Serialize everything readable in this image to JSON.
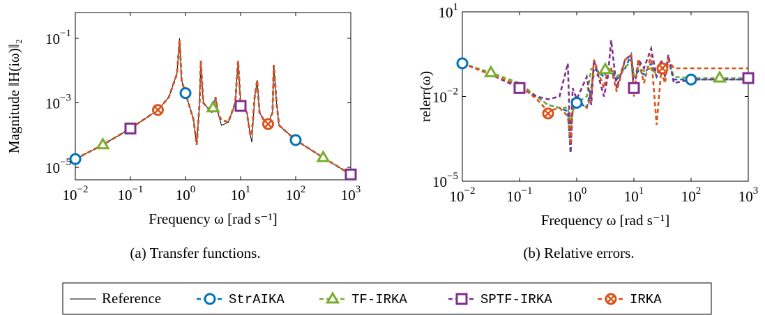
{
  "chart_data": [
    {
      "type": "line",
      "xscale": "log",
      "yscale": "log",
      "caption": "(a) Transfer functions.",
      "xlabel": "Frequency ω [rad s⁻¹]",
      "ylabel": "Magnitude ‖H(iω)‖₂",
      "xlim": [
        0.01,
        1000
      ],
      "ylim": [
        4.1e-06,
        0.63
      ],
      "xticks": [
        {
          "value": 0.01,
          "label": "10",
          "exponent": "−2"
        },
        {
          "value": 0.1,
          "label": "10",
          "exponent": "−1"
        },
        {
          "value": 1,
          "label": "10",
          "exponent": "0"
        },
        {
          "value": 10,
          "label": "10",
          "exponent": "1"
        },
        {
          "value": 100,
          "label": "10",
          "exponent": "2"
        },
        {
          "value": 1000,
          "label": "10",
          "exponent": "3"
        }
      ],
      "yticks": [
        {
          "value": 1e-05,
          "label": "10",
          "exponent": "−5"
        },
        {
          "value": 0.001,
          "label": "10",
          "exponent": "−3"
        },
        {
          "value": 0.1,
          "label": "10",
          "exponent": "−1"
        }
      ],
      "x": [
        0.01,
        0.0316,
        0.1,
        0.316,
        0.5,
        0.7,
        0.78,
        0.85,
        1,
        1.4,
        1.6,
        1.8,
        1.9,
        2.1,
        3,
        3.5,
        4,
        4.5,
        6,
        8,
        9,
        10,
        13,
        15,
        16,
        18,
        20,
        22,
        30,
        38,
        40,
        45,
        50,
        100,
        316,
        1000
      ],
      "series": [
        {
          "name": "Reference",
          "color": "#000000",
          "marker": "none",
          "values": [
            1.8e-05,
            5e-05,
            0.00016,
            0.0006,
            0.0015,
            0.008,
            0.1,
            0.005,
            0.002,
            0.0003,
            5e-05,
            0.001,
            0.02,
            0.001,
            0.0005,
            0.0015,
            0.0004,
            0.0002,
            0.00025,
            0.001,
            0.02,
            0.001,
            0.0005,
            0.0001,
            6e-05,
            0.0015,
            0.005,
            0.0005,
            0.0002,
            0.0005,
            0.015,
            0.001,
            0.0002,
            7e-05,
            2e-05,
            6e-06
          ]
        },
        {
          "name": "StrAIKA",
          "color": "#0072bd",
          "marker": "circle",
          "values": [
            1.8e-05,
            5e-05,
            0.00016,
            0.0006,
            0.0015,
            0.008,
            0.09,
            0.005,
            0.002,
            0.0003,
            5e-05,
            0.001,
            0.02,
            0.001,
            0.0005,
            0.0015,
            0.0004,
            0.0003,
            0.00025,
            0.001,
            0.02,
            0.001,
            0.0005,
            0.0001,
            0.0001,
            0.0015,
            0.005,
            0.0005,
            0.0002,
            0.0005,
            0.015,
            0.001,
            0.0002,
            7e-05,
            2e-05,
            6e-06
          ],
          "markers": {
            "x": [
              0.01,
              1,
              100
            ],
            "values": [
              1.8e-05,
              0.002,
              7e-05
            ]
          }
        },
        {
          "name": "TF-IRKA",
          "color": "#77ac30",
          "marker": "triangle",
          "values": [
            1.8e-05,
            5e-05,
            0.00016,
            0.0006,
            0.0015,
            0.008,
            0.09,
            0.005,
            0.002,
            0.0003,
            5e-05,
            0.001,
            0.02,
            0.001,
            0.0005,
            0.0015,
            0.0004,
            0.0003,
            0.00025,
            0.001,
            0.02,
            0.001,
            0.0005,
            0.0001,
            0.0001,
            0.0015,
            0.005,
            0.0005,
            0.0002,
            0.0005,
            0.015,
            0.001,
            0.0002,
            7e-05,
            2e-05,
            6e-06
          ],
          "markers": {
            "x": [
              0.0316,
              3.16,
              316
            ],
            "values": [
              5e-05,
              0.0007,
              2e-05
            ]
          }
        },
        {
          "name": "SPTF-IRKA",
          "color": "#7e2f8e",
          "marker": "square",
          "values": [
            1.8e-05,
            5e-05,
            0.00016,
            0.0006,
            0.0015,
            0.008,
            0.09,
            0.005,
            0.002,
            0.0003,
            5e-05,
            0.001,
            0.02,
            0.001,
            0.0005,
            0.0015,
            0.0004,
            0.0003,
            0.00025,
            0.001,
            0.02,
            0.001,
            0.0005,
            0.0001,
            0.0001,
            0.0015,
            0.005,
            0.0005,
            0.0002,
            0.0005,
            0.015,
            0.001,
            0.0002,
            7e-05,
            2e-05,
            6e-06
          ],
          "markers": {
            "x": [
              0.1,
              10,
              1000
            ],
            "values": [
              0.00016,
              0.0008,
              6e-06
            ]
          }
        },
        {
          "name": "IRKA",
          "color": "#d95319",
          "marker": "otimes",
          "values": [
            1.8e-05,
            5e-05,
            0.00016,
            0.0006,
            0.0015,
            0.008,
            0.09,
            0.005,
            0.002,
            0.0003,
            5e-05,
            0.001,
            0.02,
            0.001,
            0.0005,
            0.0015,
            0.0004,
            0.0003,
            0.00025,
            0.001,
            0.02,
            0.001,
            0.0005,
            0.0001,
            0.0001,
            0.0015,
            0.005,
            0.0005,
            0.0002,
            0.0005,
            0.015,
            0.001,
            0.0002,
            7e-05,
            2e-05,
            6e-06
          ],
          "markers": {
            "x": [
              0.316,
              31.6
            ],
            "values": [
              0.0006,
              0.00022
            ]
          }
        }
      ]
    },
    {
      "type": "line",
      "xscale": "log",
      "yscale": "log",
      "caption": "(b) Relative errors.",
      "xlabel": "Frequency ω [rad s⁻¹]",
      "ylabel": "relerr(ω)",
      "xlim": [
        0.01,
        1000
      ],
      "ylim": [
        1e-05,
        10
      ],
      "xticks": [
        {
          "value": 0.01,
          "label": "10",
          "exponent": "−2"
        },
        {
          "value": 0.1,
          "label": "10",
          "exponent": "−1"
        },
        {
          "value": 1,
          "label": "10",
          "exponent": "0"
        },
        {
          "value": 10,
          "label": "10",
          "exponent": "1"
        },
        {
          "value": 100,
          "label": "10",
          "exponent": "2"
        },
        {
          "value": 1000,
          "label": "10",
          "exponent": "3"
        }
      ],
      "yticks": [
        {
          "value": 1e-05,
          "label": "10",
          "exponent": "−5"
        },
        {
          "value": 0.01,
          "label": "10",
          "exponent": "−2"
        },
        {
          "value": 10,
          "label": "10",
          "exponent": "1"
        }
      ],
      "x": [
        0.01,
        0.0316,
        0.1,
        0.2,
        0.316,
        0.5,
        0.7,
        0.78,
        0.85,
        1,
        1.5,
        1.8,
        2,
        3,
        3.5,
        4,
        5,
        7,
        9,
        10,
        12,
        15,
        20,
        25,
        30,
        35,
        40,
        50,
        100,
        316,
        1000
      ],
      "series": [
        {
          "color": "#0072bd",
          "marker": "circle",
          "values": [
            0.15,
            0.06,
            0.025,
            0.01,
            0.005,
            0.004,
            0.003,
            0.0001,
            0.003,
            0.007,
            0.004,
            0.02,
            0.1,
            0.05,
            0.1,
            0.08,
            0.04,
            0.1,
            0.3,
            0.05,
            0.08,
            0.06,
            0.15,
            0.05,
            0.1,
            0.08,
            0.2,
            0.04,
            0.04,
            0.04,
            0.04
          ],
          "markers": {
            "x": [
              0.01,
              1,
              100
            ],
            "values": [
              0.15,
              0.006,
              0.04
            ]
          }
        },
        {
          "color": "#77ac30",
          "marker": "triangle",
          "values": [
            0.15,
            0.07,
            0.03,
            0.01,
            0.005,
            0.004,
            0.004,
            0.001,
            0.003,
            0.006,
            0.01,
            0.1,
            0.05,
            0.08,
            0.07,
            0.1,
            0.05,
            0.1,
            0.2,
            0.06,
            0.1,
            0.08,
            0.1,
            0.06,
            0.1,
            0.08,
            0.2,
            0.05,
            0.045,
            0.045,
            0.045
          ],
          "markers": {
            "x": [
              0.0316,
              3.16,
              316
            ],
            "values": [
              0.07,
              0.09,
              0.045
            ]
          }
        },
        {
          "color": "#7e2f8e",
          "marker": "square",
          "values": [
            0.15,
            0.06,
            0.02,
            0.01,
            0.008,
            0.01,
            0.15,
            0.0001,
            0.02,
            0.008,
            0.05,
            0.005,
            0.2,
            0.01,
            0.05,
            1,
            0.02,
            0.2,
            0.3,
            0.015,
            0.2,
            0.1,
            0.5,
            0.05,
            0.2,
            0.05,
            0.3,
            0.03,
            0.04,
            0.04,
            0.04
          ],
          "markers": {
            "x": [
              0.1,
              10,
              1000
            ],
            "values": [
              0.02,
              0.02,
              0.045
            ]
          }
        },
        {
          "color": "#d95319",
          "marker": "otimes",
          "values": [
            0.15,
            0.06,
            0.025,
            0.008,
            0.003,
            0.004,
            0.002,
            0.0002,
            0.004,
            0.008,
            0.004,
            0.01,
            0.2,
            0.02,
            0.1,
            0.1,
            0.015,
            0.2,
            0.3,
            0.01,
            0.2,
            0.03,
            0.3,
            0.001,
            0.08,
            0.03,
            0.2,
            0.1,
            0.1,
            0.1,
            0.1
          ],
          "markers": {
            "x": [
              0.316,
              31.6
            ],
            "values": [
              0.0025,
              0.1
            ]
          }
        }
      ]
    }
  ]
}
